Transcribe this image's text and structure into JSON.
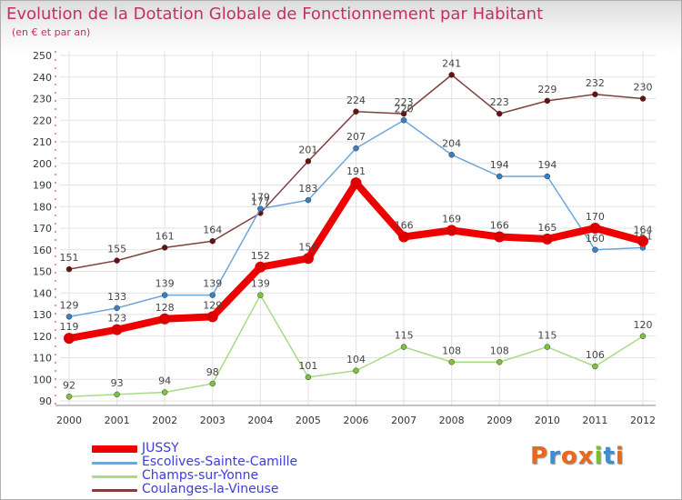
{
  "title": "Evolution de la Dotation Globale de Fonctionnement par Habitant",
  "subtitle": "(en € et par an)",
  "logo": {
    "letters": [
      "P",
      "r",
      "o",
      "x",
      "i",
      "t",
      "i"
    ],
    "colors": [
      "#e8681c",
      "#3a8fd0",
      "#e8681c",
      "#e8681c",
      "#7cbf2a",
      "#3a8fd0",
      "#e8681c"
    ]
  },
  "chart_data": {
    "type": "line",
    "title": "Evolution de la Dotation Globale de Fonctionnement par Habitant",
    "subtitle": "(en € et par an)",
    "x": [
      "2000",
      "2001",
      "2002",
      "2003",
      "2004",
      "2005",
      "2006",
      "2007",
      "2008",
      "2009",
      "2010",
      "2011",
      "2012"
    ],
    "ylim": [
      90,
      250
    ],
    "yticks": [
      90,
      100,
      110,
      120,
      130,
      140,
      150,
      160,
      170,
      180,
      190,
      200,
      210,
      220,
      230,
      240,
      250
    ],
    "grid": true,
    "legend_position": "bottom-left",
    "series": [
      {
        "name": "JUSSY",
        "values": [
          119,
          123,
          128,
          129,
          152,
          156,
          191,
          166,
          169,
          166,
          165,
          170,
          164
        ],
        "color": "#ee0000",
        "marker": "#dd0000",
        "width": 8
      },
      {
        "name": "Escolives-Sainte-Camille",
        "values": [
          129,
          133,
          139,
          139,
          179,
          183,
          207,
          220,
          204,
          194,
          194,
          160,
          161
        ],
        "color": "#6ea6d8",
        "marker": "#3a7fc4",
        "width": 1.5
      },
      {
        "name": "Champs-sur-Yonne",
        "values": [
          92,
          93,
          94,
          98,
          139,
          101,
          104,
          115,
          108,
          108,
          115,
          106,
          120
        ],
        "color": "#a8dc80",
        "marker": "#7cc43c",
        "width": 1.5
      },
      {
        "name": "Coulanges-la-Vineuse",
        "values": [
          151,
          155,
          161,
          164,
          177,
          201,
          224,
          223,
          241,
          223,
          229,
          232,
          230
        ],
        "color": "#804040",
        "marker": "#6a1010",
        "width": 1.5
      }
    ]
  }
}
